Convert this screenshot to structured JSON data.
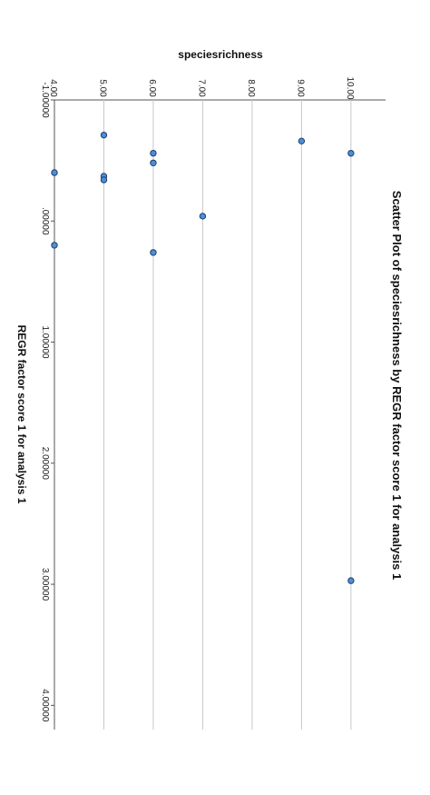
{
  "chart_data": {
    "type": "scatter",
    "title": "Scatter Plot of speciesrichness by REGR factor score   1 for analysis 1",
    "xlabel": "REGR factor score   1 for analysis 1",
    "ylabel": "speciesrichness",
    "x_ticks": [
      "-1.00000",
      ".00000",
      "1.00000",
      "2.00000",
      "3.00000",
      "4.00000"
    ],
    "y_ticks": [
      "4.00",
      "5.00",
      "6.00",
      "7.00",
      "8.00",
      "9.00",
      "10.00"
    ],
    "xlim": [
      -1.0,
      4.2
    ],
    "ylim": [
      4.0,
      10.7
    ],
    "grid": true,
    "orientation": "rotated-90-clockwise",
    "series": [
      {
        "points": [
          {
            "x": -0.71,
            "y": 5
          },
          {
            "x": -0.66,
            "y": 9
          },
          {
            "x": -0.56,
            "y": 10
          },
          {
            "x": -0.56,
            "y": 6
          },
          {
            "x": -0.48,
            "y": 6
          },
          {
            "x": -0.4,
            "y": 4
          },
          {
            "x": -0.37,
            "y": 5
          },
          {
            "x": -0.34,
            "y": 5
          },
          {
            "x": -0.04,
            "y": 7
          },
          {
            "x": 0.2,
            "y": 4
          },
          {
            "x": 0.26,
            "y": 6
          },
          {
            "x": 2.97,
            "y": 10
          }
        ]
      }
    ],
    "colors": {
      "marker_fill": "#4d8fd6",
      "marker_stroke": "#1f3d66",
      "grid": "#c8c8c8",
      "axis": "#555555"
    }
  }
}
